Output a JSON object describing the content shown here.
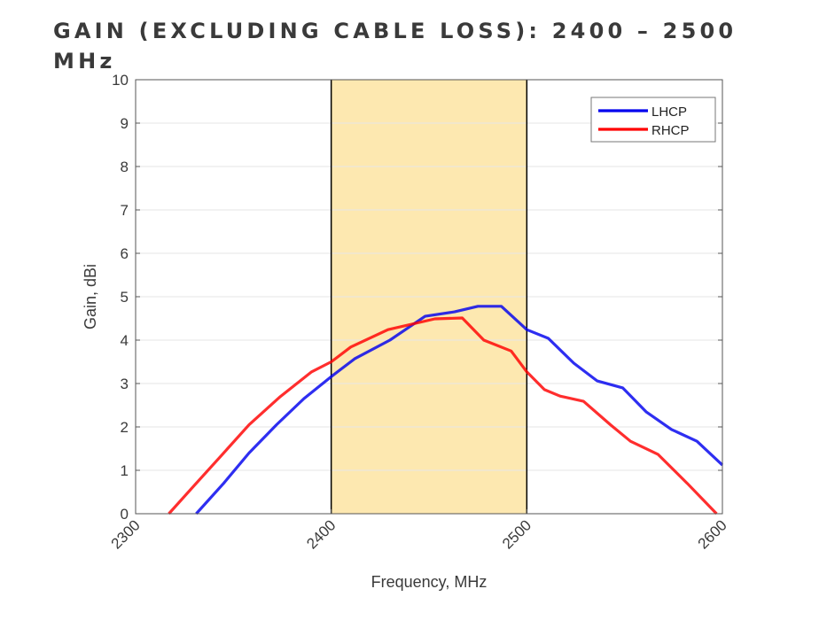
{
  "chart_data": {
    "type": "line",
    "title": "GAIN (EXCLUDING CABLE LOSS): 2400 – 2500 MHz",
    "xlabel": "Frequency, MHz",
    "ylabel": "Gain, dBi",
    "xlim": [
      2300,
      2600
    ],
    "ylim": [
      0,
      10
    ],
    "xticks": [
      2300,
      2400,
      2500,
      2600
    ],
    "yticks": [
      0,
      1,
      2,
      3,
      4,
      5,
      6,
      7,
      8,
      9,
      10
    ],
    "grid": "horizontal",
    "legend_position": "top-right",
    "highlight_band": {
      "from": 2400,
      "to": 2500,
      "color": "#fde8b0"
    },
    "series": [
      {
        "name": "LHCP",
        "color": "#0000ee",
        "x": [
          2331,
          2345,
          2358,
          2372,
          2386,
          2400,
          2412,
          2430,
          2448,
          2463,
          2475,
          2487,
          2500,
          2511,
          2524,
          2536,
          2549,
          2561,
          2574,
          2587,
          2600
        ],
        "y": [
          0,
          0.7,
          1.4,
          2.05,
          2.65,
          3.16,
          3.57,
          4.0,
          4.55,
          4.65,
          4.78,
          4.78,
          4.24,
          4.04,
          3.47,
          3.06,
          2.9,
          2.35,
          1.94,
          1.67,
          1.12
        ]
      },
      {
        "name": "RHCP",
        "color": "#ff0000",
        "x": [
          2317,
          2330,
          2344,
          2358,
          2374,
          2390,
          2400,
          2410,
          2429,
          2453,
          2467,
          2478,
          2492,
          2500,
          2509,
          2517,
          2529,
          2543,
          2553,
          2567,
          2582,
          2597
        ],
        "y": [
          0,
          0.65,
          1.35,
          2.05,
          2.7,
          3.27,
          3.5,
          3.84,
          4.24,
          4.49,
          4.51,
          4.0,
          3.75,
          3.27,
          2.86,
          2.71,
          2.59,
          2.04,
          1.67,
          1.37,
          0.7,
          0
        ]
      }
    ]
  }
}
